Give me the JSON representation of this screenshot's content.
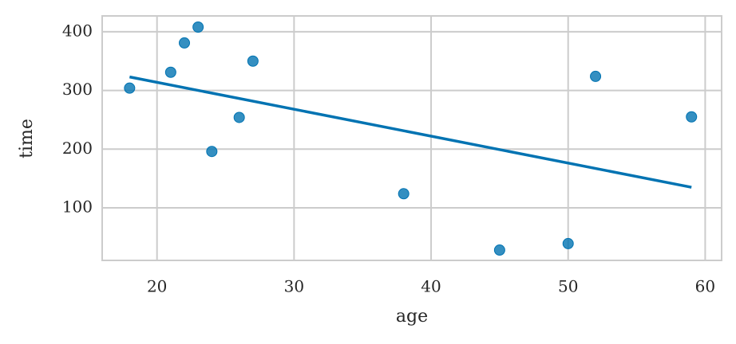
{
  "chart_data": {
    "type": "scatter",
    "x_label": "age",
    "y_label": "time",
    "x": [
      18,
      21,
      22,
      23,
      24,
      26,
      27,
      38,
      45,
      50,
      52,
      59
    ],
    "values": [
      304,
      331,
      381,
      408,
      196,
      254,
      350,
      124,
      28,
      39,
      324,
      255
    ],
    "color": "#0173b2",
    "fit": {
      "x": [
        18,
        59
      ],
      "values": [
        323,
        135
      ],
      "color": "#0173b2"
    },
    "xlim": [
      16,
      61.2
    ],
    "ylim": [
      10.4,
      427
    ],
    "xticks": [
      20,
      30,
      40,
      50,
      60
    ],
    "yticks": [
      100,
      200,
      300,
      400
    ],
    "grid": true
  }
}
